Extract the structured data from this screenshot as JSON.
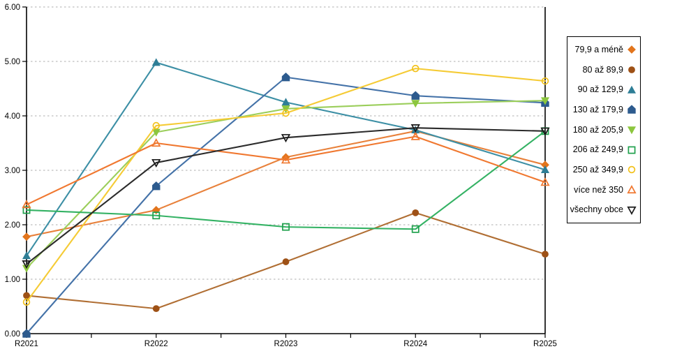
{
  "chart_data": {
    "type": "line",
    "categories": [
      "R2021",
      "R2022",
      "R2023",
      "R2024",
      "R2025"
    ],
    "series": [
      {
        "name": "79,9 a méně",
        "values": [
          1.78,
          2.27,
          3.24,
          3.72,
          3.1
        ],
        "color": "#E2751D",
        "line_color": "#E8813B",
        "marker": "diamond",
        "fill": "solid"
      },
      {
        "name": "80 až 89,9",
        "values": [
          0.7,
          0.46,
          1.32,
          2.22,
          1.46
        ],
        "color": "#9E5116",
        "line_color": "#B06E33",
        "marker": "circle",
        "fill": "solid"
      },
      {
        "name": "90 až 129,9",
        "values": [
          1.43,
          4.98,
          4.25,
          3.74,
          3.01
        ],
        "color": "#2E7E96",
        "line_color": "#3C8FA5",
        "marker": "triangle-up",
        "fill": "solid"
      },
      {
        "name": "130 až 179,9",
        "values": [
          0.0,
          2.71,
          4.71,
          4.37,
          4.24
        ],
        "color": "#2D5B8E",
        "line_color": "#4472A8",
        "marker": "pentagon",
        "fill": "solid"
      },
      {
        "name": "180 až 205,9",
        "values": [
          1.2,
          3.7,
          4.13,
          4.23,
          4.28
        ],
        "color": "#8CC63E",
        "line_color": "#9BCE5B",
        "marker": "triangle-down",
        "fill": "solid"
      },
      {
        "name": "206 až 249,9",
        "values": [
          2.27,
          2.17,
          1.96,
          1.92,
          3.72
        ],
        "color": "#1FA04C",
        "line_color": "#34B264",
        "marker": "square",
        "fill": "open"
      },
      {
        "name": "250 až 349,9",
        "values": [
          0.58,
          3.82,
          4.05,
          4.87,
          4.64
        ],
        "color": "#F2C11C",
        "line_color": "#F5CB35",
        "marker": "circle",
        "fill": "open"
      },
      {
        "name": "více než 350",
        "values": [
          2.37,
          3.5,
          3.19,
          3.62,
          2.78
        ],
        "color": "#F07830",
        "line_color": "#F07830",
        "marker": "triangle-up",
        "fill": "open"
      },
      {
        "name": "všechny obce",
        "values": [
          1.28,
          3.14,
          3.6,
          3.78,
          3.72
        ],
        "color": "#1A1A1A",
        "line_color": "#2B2B2B",
        "marker": "triangle-down",
        "fill": "open"
      }
    ],
    "title": "",
    "xlabel": "",
    "ylabel": "",
    "ylim": [
      0,
      6
    ],
    "ytick_step": 1,
    "ytick_decimals": 2,
    "grid": "horizontal-dashed",
    "legend_position": "right"
  },
  "style": {
    "grid_color": "#ACACAC",
    "axis_color": "#000000",
    "tick_label_color": "#000000"
  }
}
